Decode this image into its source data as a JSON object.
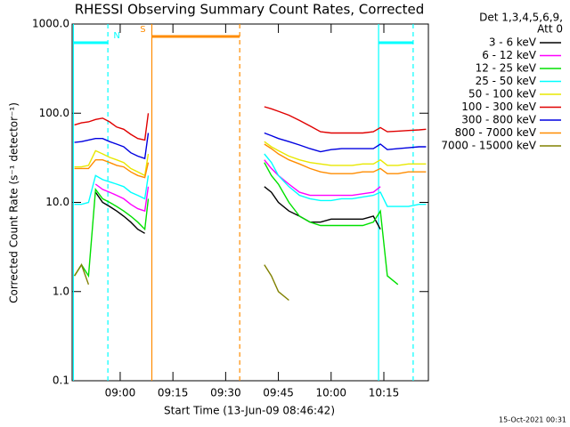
{
  "chart_data": {
    "type": "line",
    "title": "RHESSI Observing Summary Count Rates, Corrected",
    "x_label": "Start Time (13-Jun-09 08:46:42)",
    "y_label": "Corrected Count Rate (s⁻¹ detector⁻¹)",
    "footer": "15-Oct-2021 00:31",
    "legend_header": [
      "Det 1,3,4,5,6,9,",
      "Att 0"
    ],
    "legend": "right",
    "log_y": true,
    "ylim": [
      0.1,
      1000
    ],
    "yticks": [
      0.1,
      {
        "value": 1,
        "label": "1.0"
      },
      {
        "value": 10,
        "label": "10.0"
      },
      {
        "value": 100,
        "label": "100.0"
      },
      {
        "value": 1000,
        "label": "1000.0"
      }
    ],
    "xlim": [
      "08:46:20",
      "10:27:40"
    ],
    "xticks": [
      "09:00",
      "09:15",
      "09:30",
      "09:45",
      "10:00",
      "10:15"
    ],
    "x": [
      "08:47",
      "08:49",
      "08:51",
      "08:53",
      "08:55",
      "08:57",
      "08:59",
      "09:01",
      "09:03",
      "09:05",
      "09:07",
      "09:08",
      "09:25",
      "09:41",
      "09:43",
      "09:45",
      "09:48",
      "09:51",
      "09:54",
      "09:57",
      "10:00",
      "10:03",
      "10:06",
      "10:09",
      "10:12",
      "10:14",
      "10:16",
      "10:19",
      "10:22",
      "10:25",
      "10:27"
    ],
    "series": [
      {
        "name": "3 - 6 keV",
        "color": "#000000",
        "values": [
          null,
          null,
          null,
          13,
          10,
          9,
          8,
          7,
          6,
          5,
          4.5,
          null,
          null,
          15,
          13,
          10,
          8,
          7,
          6,
          6,
          6.5,
          6.5,
          6.5,
          6.5,
          7,
          5,
          null,
          null,
          null,
          null,
          null
        ]
      },
      {
        "name": "6 - 12 keV",
        "color": "#ff00ff",
        "values": [
          null,
          null,
          null,
          16,
          14,
          13,
          12,
          11,
          9.5,
          8.5,
          8,
          15,
          null,
          30,
          24,
          20,
          16,
          13,
          12,
          12,
          12,
          12,
          12,
          12.5,
          13,
          15,
          null,
          null,
          null,
          null,
          null
        ]
      },
      {
        "name": "12 - 25 keV",
        "color": "#00e000",
        "values": [
          1.5,
          2,
          1.5,
          14,
          11,
          10,
          9,
          8,
          7,
          6,
          5,
          11,
          null,
          28,
          20,
          16,
          10,
          7,
          6,
          5.5,
          5.5,
          5.5,
          5.5,
          5.5,
          6,
          8,
          1.5,
          1.2,
          null,
          null,
          null
        ]
      },
      {
        "name": "25 - 50 keV",
        "color": "#00ffff",
        "values": [
          9.5,
          9.5,
          10,
          20,
          18,
          17,
          16,
          15,
          13,
          12,
          11,
          20,
          null,
          35,
          28,
          20,
          15,
          12,
          11,
          10.5,
          10.5,
          11,
          11,
          11.5,
          12,
          13,
          9,
          9,
          9,
          9.5,
          9.5
        ]
      },
      {
        "name": "50 - 100 keV",
        "color": "#e8e800",
        "values": [
          25,
          25,
          26,
          38,
          35,
          32,
          30,
          28,
          24,
          22,
          20,
          35,
          null,
          48,
          42,
          38,
          33,
          30,
          28,
          27,
          26,
          26,
          26,
          27,
          27,
          30,
          26,
          26,
          27,
          27,
          27
        ]
      },
      {
        "name": "100 - 300 keV",
        "color": "#e00000",
        "values": [
          74,
          78,
          80,
          85,
          88,
          80,
          70,
          66,
          58,
          52,
          50,
          100,
          null,
          118,
          112,
          105,
          95,
          83,
          72,
          62,
          60,
          60,
          60,
          60,
          62,
          69,
          62,
          63,
          64,
          65,
          66
        ]
      },
      {
        "name": "300 - 800 keV",
        "color": "#0000e0",
        "values": [
          47,
          48,
          50,
          52,
          52,
          48,
          45,
          42,
          36,
          33,
          31,
          60,
          null,
          60,
          56,
          52,
          48,
          44,
          40,
          37,
          39,
          40,
          40,
          40,
          40,
          45,
          39,
          40,
          41,
          42,
          42
        ]
      },
      {
        "name": "800 - 7000 keV",
        "color": "#ff8c00",
        "values": [
          24,
          24,
          24,
          30,
          30,
          28,
          26,
          25,
          22,
          20,
          19,
          28,
          null,
          45,
          40,
          35,
          30,
          27,
          24,
          22,
          21,
          21,
          21,
          22,
          22,
          24,
          21,
          21,
          22,
          22,
          22
        ]
      },
      {
        "name": "7000 - 15000 keV",
        "color": "#808000",
        "values": [
          1.5,
          2,
          1.2,
          null,
          null,
          null,
          null,
          null,
          null,
          null,
          null,
          null,
          null,
          2,
          1.5,
          1,
          0.8,
          null,
          null,
          null,
          null,
          null,
          null,
          null,
          null,
          null,
          null,
          null,
          null,
          null,
          null
        ]
      }
    ],
    "events": [
      {
        "time": "08:46:42",
        "color": "#00ffff",
        "style": "solid"
      },
      {
        "time": "08:56:30",
        "color": "#00ffff",
        "style": "dashed"
      },
      {
        "time": "09:09",
        "color": "#ff8c00",
        "style": "solid"
      },
      {
        "time": "09:34",
        "color": "#ff8c00",
        "style": "dashed"
      },
      {
        "time": "10:13:30",
        "color": "#00ffff",
        "style": "solid"
      },
      {
        "time": "10:23:20",
        "color": "#00ffff",
        "style": "dashed"
      }
    ],
    "flags": [
      {
        "label": "N",
        "start": "08:46:42",
        "end": "08:56:30",
        "color": "#00ffff"
      },
      {
        "label": "S",
        "start": "09:09",
        "end": "09:34",
        "color": "#ff8c00"
      },
      {
        "label": null,
        "start": "10:13:30",
        "end": "10:23:20",
        "color": "#00ffff"
      }
    ]
  }
}
